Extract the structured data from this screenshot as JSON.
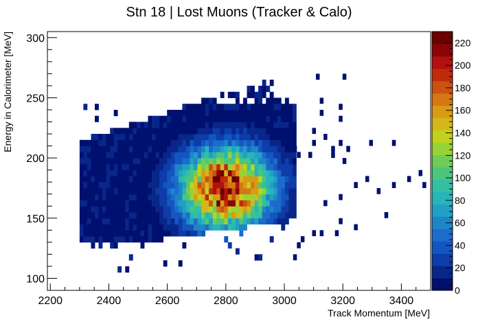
{
  "chart_data": {
    "type": "heatmap",
    "title": "Stn 18 | Lost Muons (Tracker & Calo)",
    "xlabel": "Track Momentum [MeV]",
    "ylabel": "Energy in Calorimeter [MeV]",
    "xlim": [
      2190,
      3500
    ],
    "ylim": [
      90,
      305
    ],
    "x_ticks": [
      2200,
      2400,
      2600,
      2800,
      3000,
      3200,
      3400
    ],
    "y_ticks": [
      100,
      150,
      200,
      250,
      300
    ],
    "z_range": [
      0,
      230
    ],
    "z_ticks": [
      0,
      20,
      40,
      60,
      80,
      100,
      120,
      140,
      160,
      180,
      200,
      220
    ],
    "bin_width_x": 13,
    "bin_width_y": 5,
    "core": {
      "x": 2800,
      "y": 175,
      "peak": 225
    },
    "palette": [
      "#00106e",
      "#09268a",
      "#0e3ca8",
      "#1456c0",
      "#1b6ccb",
      "#1e86c7",
      "#22a0c4",
      "#27b5ba",
      "#34bfa2",
      "#4cc67c",
      "#6fcc58",
      "#99d236",
      "#c1d21c",
      "#d4b81a",
      "#d99a15",
      "#d67712",
      "#cb520f",
      "#c02a0b",
      "#b31010",
      "#8a0606",
      "#6a0000"
    ],
    "outliers": [
      [
        3108,
        265
      ],
      [
        3199,
        265
      ],
      [
        3121,
        245
      ],
      [
        3186,
        240
      ],
      [
        3121,
        235
      ],
      [
        3186,
        230
      ],
      [
        3095,
        220
      ],
      [
        3134,
        215
      ],
      [
        3186,
        210
      ],
      [
        3095,
        210
      ],
      [
        3290,
        210
      ],
      [
        3368,
        210
      ],
      [
        3160,
        205
      ],
      [
        3212,
        205
      ],
      [
        3030,
        205
      ],
      [
        3043,
        200
      ],
      [
        3082,
        200
      ],
      [
        3160,
        200
      ],
      [
        3199,
        195
      ],
      [
        3420,
        180
      ],
      [
        3459,
        185
      ],
      [
        3472,
        175
      ],
      [
        3238,
        175
      ],
      [
        3277,
        180
      ],
      [
        3368,
        175
      ],
      [
        3186,
        165
      ],
      [
        3134,
        160
      ],
      [
        3316,
        170
      ],
      [
        3342,
        150
      ],
      [
        3186,
        145
      ],
      [
        3238,
        140
      ],
      [
        3056,
        130
      ],
      [
        3095,
        135
      ],
      [
        3121,
        135
      ],
      [
        3173,
        135
      ],
      [
        3030,
        115
      ],
      [
        3043,
        125
      ]
    ]
  }
}
